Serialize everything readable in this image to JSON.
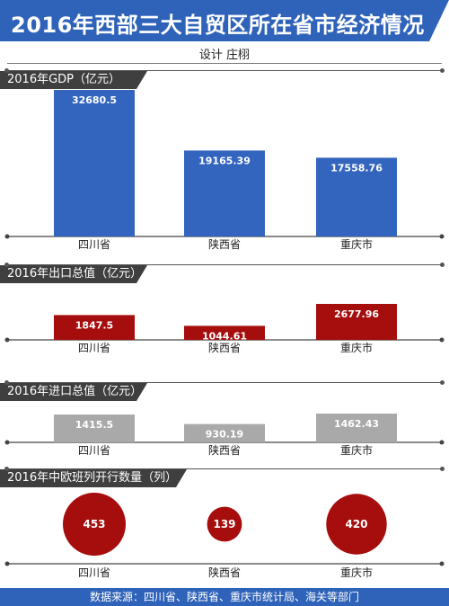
{
  "title": "2016年西部三大自贸区所在省市经济情况",
  "designer": "设计  庄栩",
  "source": "数据来源：四川省、陕西省、重庆市统计局、海关等部门",
  "colors": {
    "blue": "#3465be",
    "red": "#a60d0d",
    "gray": "#a9a9a9",
    "dark": "#3f3f3f"
  },
  "chart_data": [
    {
      "type": "bar",
      "title": "2016年GDP（亿元）",
      "categories": [
        "四川省",
        "陕西省",
        "重庆市"
      ],
      "values": [
        32680.5,
        19165.39,
        17558.76
      ],
      "labels": [
        "32680.5",
        "19165.39",
        "17558.76"
      ],
      "color": "#3465be"
    },
    {
      "type": "bar",
      "title": "2016年出口总值（亿元）",
      "categories": [
        "四川省",
        "陕西省",
        "重庆市"
      ],
      "values": [
        1847.5,
        1044.61,
        2677.96
      ],
      "labels": [
        "1847.5",
        "1044.61",
        "2677.96"
      ],
      "color": "#a60d0d"
    },
    {
      "type": "bar",
      "title": "2016年进口总值（亿元）",
      "categories": [
        "四川省",
        "陕西省",
        "重庆市"
      ],
      "values": [
        1415.5,
        930.19,
        1462.43
      ],
      "labels": [
        "1415.5",
        "930.19",
        "1462.43"
      ],
      "color": "#a9a9a9"
    },
    {
      "type": "bubble",
      "title": "2016年中欧班列开行数量（列）",
      "categories": [
        "四川省",
        "陕西省",
        "重庆市"
      ],
      "values": [
        453,
        139,
        420
      ],
      "labels": [
        "453",
        "139",
        "420"
      ],
      "color": "#a60d0d"
    }
  ]
}
